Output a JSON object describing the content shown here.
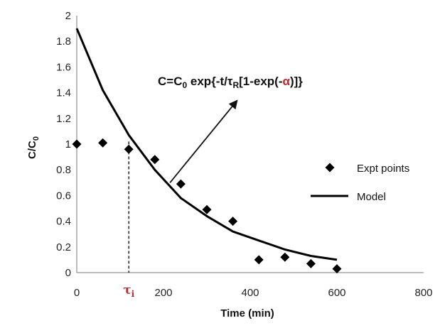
{
  "chart_data": {
    "type": "scatter",
    "title": "",
    "xlabel": "Time (min)",
    "ylabel": {
      "main": "C/C",
      "sub": "0"
    },
    "xlim": [
      0,
      800
    ],
    "ylim": [
      0,
      2
    ],
    "x_ticks": [
      "0",
      "200",
      "400",
      "600",
      "800"
    ],
    "y_ticks": [
      "0",
      "0.2",
      "0.4",
      "0.6",
      "0.8",
      "1",
      "1.2",
      "1.4",
      "1.6",
      "1.8",
      "2"
    ],
    "grid": false,
    "legend": {
      "position": "right",
      "entries": [
        {
          "label": "Expt points",
          "marker": "diamond"
        },
        {
          "label": "Model",
          "marker": "line"
        }
      ]
    },
    "series": [
      {
        "name": "Expt points",
        "kind": "scatter",
        "x": [
          0,
          60,
          120,
          180,
          240,
          300,
          360,
          420,
          480,
          540,
          600
        ],
        "y": [
          1.0,
          1.01,
          0.96,
          0.88,
          0.69,
          0.49,
          0.4,
          0.1,
          0.12,
          0.07,
          0.03
        ]
      },
      {
        "name": "Model",
        "kind": "line",
        "x": [
          0,
          60,
          120,
          180,
          240,
          300,
          360,
          420,
          480,
          540,
          600
        ],
        "y": [
          1.9,
          1.42,
          1.07,
          0.8,
          0.58,
          0.44,
          0.32,
          0.25,
          0.18,
          0.13,
          0.1
        ]
      }
    ],
    "annotations": {
      "equation": {
        "lhs": "C=C",
        "lhs_sub": "0",
        "mid": " exp{-t/τ",
        "mid_sub": "R",
        "rhs1": "[1-exp(-",
        "alpha": "α",
        "rhs2": ")]}"
      },
      "arrow": {
        "from": [
          215,
          0.7
        ],
        "to": [
          370,
          1.34
        ]
      },
      "tau_marker": {
        "label": "τ",
        "sub": "i",
        "x": 120,
        "y_top": 1.02
      }
    },
    "colors": {
      "marker": "#000000",
      "line": "#000000",
      "accent": "#c0282d"
    }
  }
}
